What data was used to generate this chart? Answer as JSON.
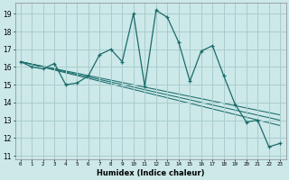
{
  "xlabel": "Humidex (Indice chaleur)",
  "bg_color": "#cce8e8",
  "grid_color": "#aacccc",
  "line_color": "#1a6b6b",
  "xlim": [
    -0.5,
    23.5
  ],
  "ylim": [
    10.8,
    19.6
  ],
  "yticks": [
    11,
    12,
    13,
    14,
    15,
    16,
    17,
    18,
    19
  ],
  "xticks": [
    0,
    1,
    2,
    3,
    4,
    5,
    6,
    7,
    8,
    9,
    10,
    11,
    12,
    13,
    14,
    15,
    16,
    17,
    18,
    19,
    20,
    21,
    22,
    23
  ],
  "main_x": [
    0,
    1,
    2,
    3,
    4,
    5,
    6,
    7,
    8,
    9,
    10,
    11,
    12,
    13,
    14,
    15,
    16,
    17,
    18,
    19,
    20,
    21,
    22,
    23
  ],
  "main_y": [
    16.3,
    16.0,
    15.9,
    16.2,
    15.0,
    15.1,
    15.5,
    16.7,
    17.0,
    16.3,
    19.0,
    14.9,
    19.2,
    18.8,
    17.4,
    15.2,
    16.9,
    17.2,
    15.5,
    13.9,
    12.9,
    13.0,
    11.5,
    11.7
  ],
  "trend_lines": [
    {
      "x": [
        0,
        23
      ],
      "y": [
        16.3,
        12.7
      ]
    },
    {
      "x": [
        0,
        23
      ],
      "y": [
        16.3,
        13.0
      ]
    },
    {
      "x": [
        0,
        23
      ],
      "y": [
        16.3,
        13.3
      ]
    }
  ]
}
